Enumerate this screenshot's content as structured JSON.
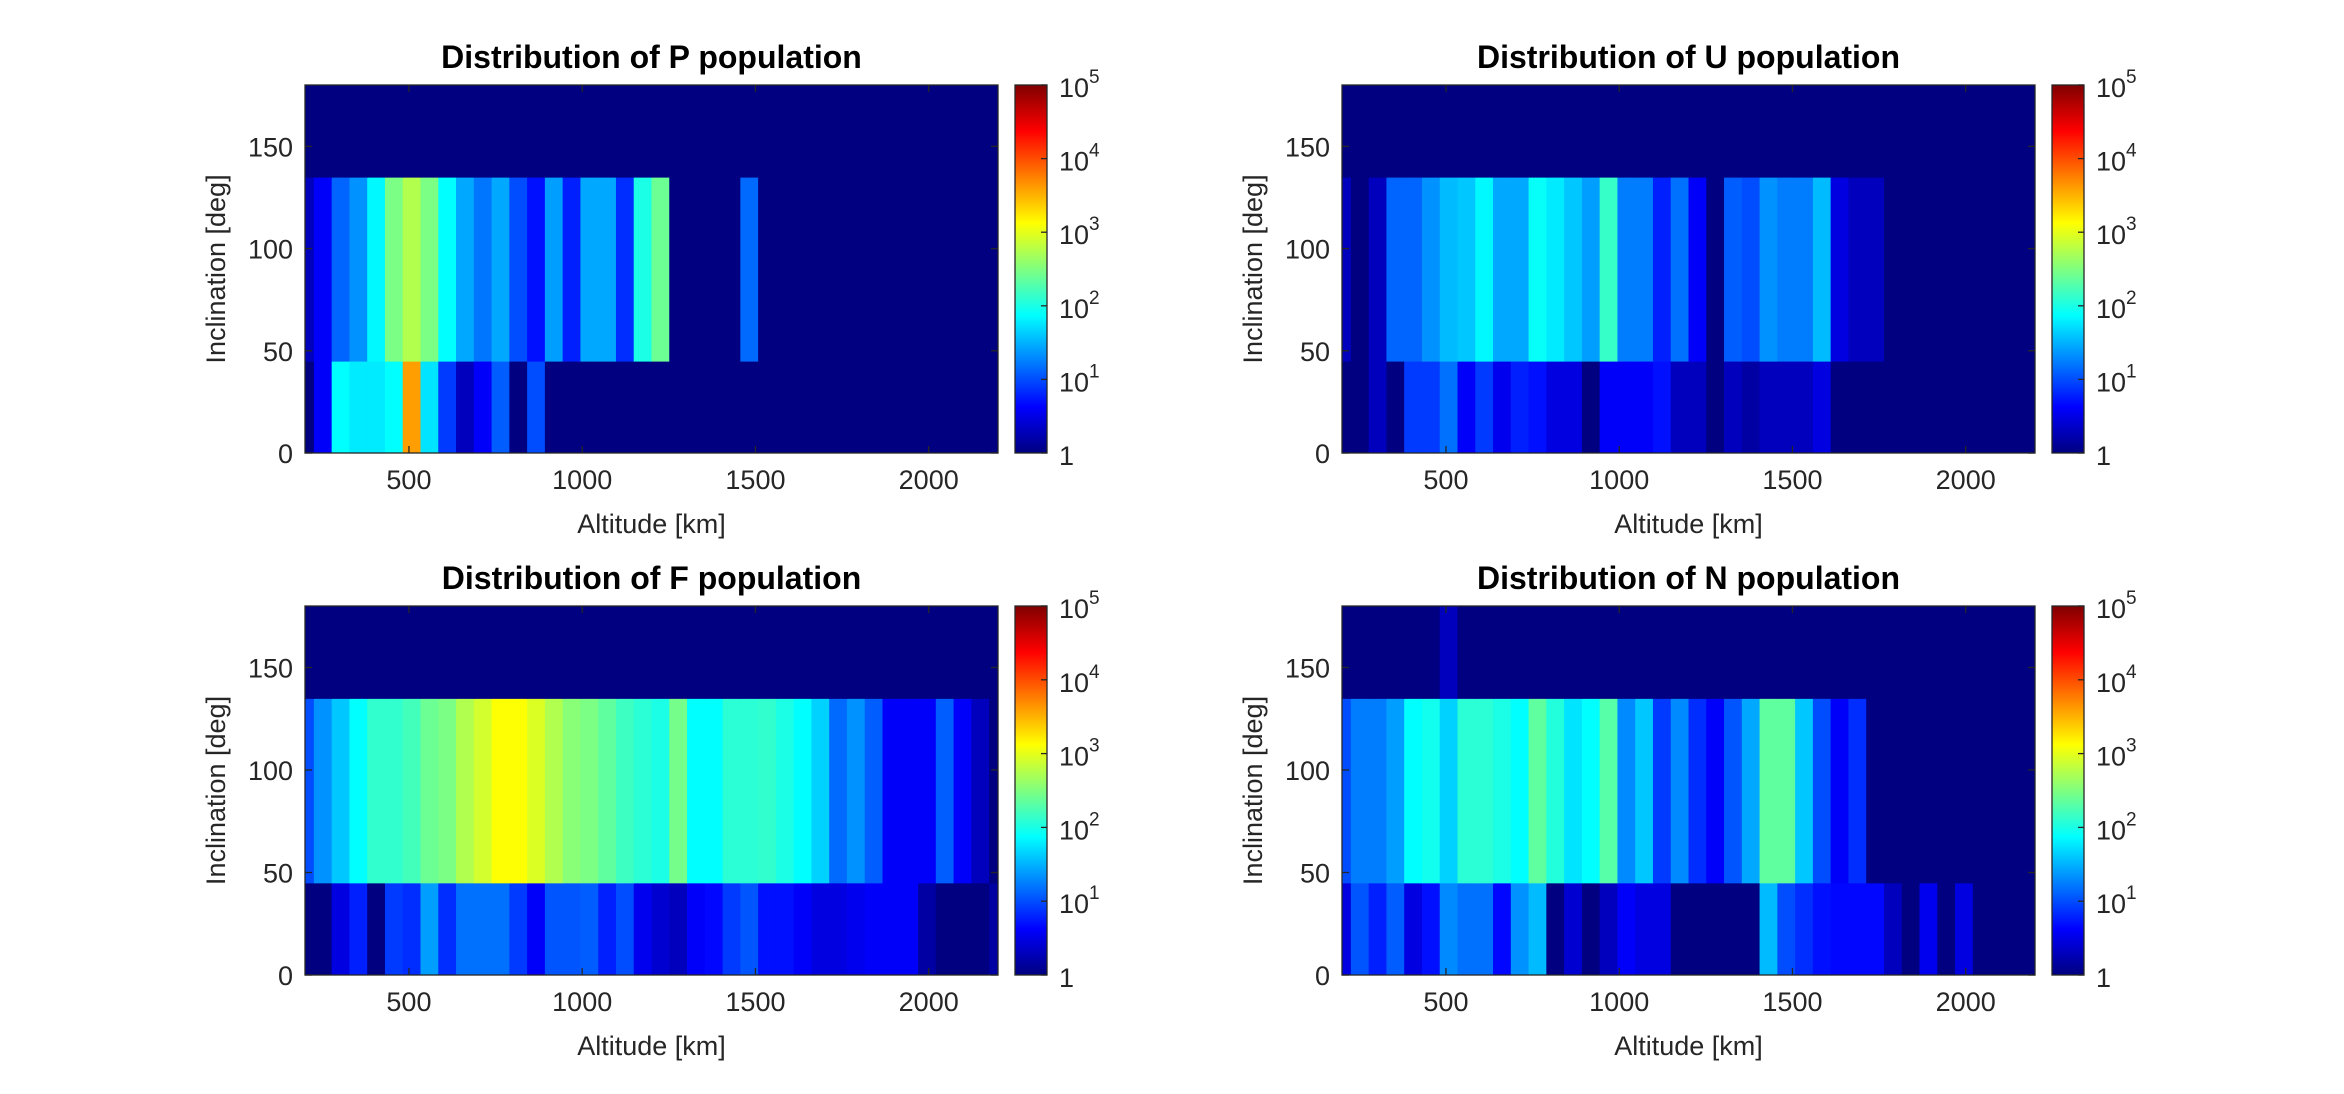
{
  "chart_data": [
    {
      "type": "heatmap",
      "title": "Distribution of P population",
      "xlabel": "Altitude [km]",
      "ylabel": "Inclination [deg]",
      "x_range": [
        200,
        2200
      ],
      "x_count": 40,
      "y": [
        0,
        90,
        180
      ],
      "xlim": [
        200,
        2200
      ],
      "ylim": [
        0,
        180
      ],
      "xticks": [
        500,
        1000,
        1500,
        2000
      ],
      "yticks": [
        0,
        50,
        100,
        150
      ],
      "colormap": "jet",
      "color_scale": "log",
      "clim": [
        1,
        100000
      ],
      "colorbar_ticks": [
        "1",
        "10^1",
        "10^2",
        "10^3",
        "10^4",
        "10^5"
      ],
      "values": [
        [
          0,
          4,
          75,
          60,
          60,
          75,
          4000,
          55,
          8,
          2,
          4,
          12,
          0,
          10,
          0,
          0,
          0,
          0,
          0,
          0,
          0,
          0,
          0,
          0,
          0,
          0,
          0,
          0,
          0,
          0,
          0,
          0,
          0,
          0,
          0,
          0,
          0,
          0,
          0,
          0
        ],
        [
          2,
          4,
          13,
          22,
          70,
          300,
          560,
          300,
          75,
          28,
          16,
          28,
          10,
          5,
          25,
          6,
          28,
          28,
          7,
          100,
          250,
          0,
          0,
          0,
          0,
          14,
          0,
          0,
          0,
          0,
          0,
          0,
          0,
          0,
          0,
          0,
          0,
          0,
          0,
          0
        ],
        [
          0,
          0,
          0,
          0,
          0,
          0,
          0,
          0,
          0,
          0,
          0,
          0,
          0,
          0,
          0,
          0,
          0,
          0,
          0,
          0,
          0,
          0,
          0,
          0,
          0,
          0,
          0,
          0,
          0,
          0,
          0,
          0,
          0,
          0,
          0,
          0,
          0,
          0,
          0,
          0
        ]
      ]
    },
    {
      "type": "heatmap",
      "title": "Distribution of U population",
      "xlabel": "Altitude [km]",
      "ylabel": "Inclination [deg]",
      "x_range": [
        200,
        2200
      ],
      "x_count": 40,
      "y": [
        0,
        90,
        180
      ],
      "xlim": [
        200,
        2200
      ],
      "ylim": [
        0,
        180
      ],
      "xticks": [
        500,
        1000,
        1500,
        2000
      ],
      "yticks": [
        0,
        50,
        100,
        150
      ],
      "colormap": "jet",
      "color_scale": "log",
      "clim": [
        1,
        100000
      ],
      "colorbar_ticks": [
        "1",
        "10^1",
        "10^2",
        "10^3",
        "10^4",
        "10^5"
      ],
      "values": [
        [
          0,
          0,
          2,
          0,
          8,
          8,
          15,
          4,
          8,
          3.5,
          6,
          5,
          3,
          3,
          0,
          4,
          4,
          4,
          5,
          2,
          2,
          0,
          2,
          1.5,
          2,
          2,
          2,
          3,
          0,
          0,
          0,
          0,
          0,
          0,
          0,
          0,
          0,
          0,
          0,
          0
        ],
        [
          2,
          0,
          2,
          13,
          13,
          22,
          35,
          40,
          70,
          28,
          28,
          80,
          60,
          40,
          25,
          140,
          17,
          17,
          6,
          15,
          4,
          0,
          12,
          10,
          22,
          17,
          17,
          35,
          3,
          2,
          2,
          0,
          0,
          0,
          0,
          0,
          0,
          0,
          0,
          0
        ],
        [
          0,
          0,
          0,
          0,
          0,
          0,
          0,
          0,
          0,
          0,
          0,
          0,
          0,
          0,
          0,
          0,
          0,
          0,
          0,
          0,
          0,
          0,
          0,
          0,
          0,
          0,
          0,
          0,
          0,
          0,
          0,
          0,
          0,
          0,
          0,
          0,
          0,
          0,
          0,
          0
        ]
      ]
    },
    {
      "type": "heatmap",
      "title": "Distribution of F population",
      "xlabel": "Altitude [km]",
      "ylabel": "Inclination [deg]",
      "x_range": [
        200,
        2200
      ],
      "x_count": 40,
      "y": [
        0,
        90,
        180
      ],
      "xlim": [
        200,
        2200
      ],
      "ylim": [
        0,
        180
      ],
      "xticks": [
        500,
        1000,
        1500,
        2000
      ],
      "yticks": [
        0,
        50,
        100,
        150
      ],
      "colormap": "jet",
      "color_scale": "log",
      "clim": [
        1,
        100000
      ],
      "colorbar_ticks": [
        "1",
        "10^1",
        "10^2",
        "10^3",
        "10^4",
        "10^5"
      ],
      "values": [
        [
          0,
          0,
          3,
          6,
          0,
          8,
          7,
          25,
          7,
          15,
          15,
          15,
          8,
          4,
          11,
          11,
          12,
          6,
          10,
          3.5,
          2.5,
          2,
          4,
          4.5,
          8,
          11,
          5,
          5,
          4,
          3,
          3,
          3.5,
          4,
          4,
          4,
          1.5,
          0,
          0,
          0,
          1.5
        ],
        [
          10,
          22,
          40,
          75,
          130,
          130,
          160,
          250,
          300,
          550,
          800,
          1300,
          1300,
          900,
          550,
          350,
          300,
          220,
          150,
          120,
          100,
          280,
          75,
          75,
          120,
          120,
          130,
          100,
          75,
          45,
          14,
          22,
          12,
          4,
          4,
          4,
          12,
          4,
          2,
          0
        ],
        [
          0,
          0,
          0,
          0,
          0,
          0,
          0,
          0,
          0,
          0,
          0,
          0,
          0,
          0,
          0,
          0,
          0,
          0,
          0,
          0,
          0,
          0,
          0,
          0,
          0,
          0,
          0,
          0,
          0,
          0,
          0,
          0,
          0,
          0,
          0,
          0,
          0,
          0,
          0,
          0
        ]
      ]
    },
    {
      "type": "heatmap",
      "title": "Distribution of N population",
      "xlabel": "Altitude [km]",
      "ylabel": "Inclination [deg]",
      "x_range": [
        200,
        2200
      ],
      "x_count": 40,
      "y": [
        0,
        90,
        180
      ],
      "xlim": [
        200,
        2200
      ],
      "ylim": [
        0,
        180
      ],
      "xticks": [
        500,
        1000,
        1500,
        2000
      ],
      "yticks": [
        0,
        50,
        100,
        150
      ],
      "colormap": "jet",
      "color_scale": "log",
      "clim": [
        1,
        100000
      ],
      "colorbar_ticks": [
        "1",
        "10^1",
        "10^2",
        "10^3",
        "10^4",
        "10^5"
      ],
      "values": [
        [
          3,
          11,
          6,
          12,
          3,
          5,
          20,
          15,
          15,
          4.5,
          22,
          35,
          0,
          2.5,
          0,
          2,
          4,
          3,
          3,
          0,
          0,
          0,
          0,
          0,
          35,
          10,
          7,
          5,
          4.5,
          4.5,
          4.5,
          2,
          0,
          3.5,
          0,
          3,
          0,
          0,
          0,
          0
        ],
        [
          10,
          17,
          17,
          25,
          75,
          90,
          45,
          120,
          120,
          100,
          75,
          220,
          110,
          55,
          75,
          200,
          20,
          40,
          8,
          20,
          7,
          4,
          11,
          28,
          220,
          220,
          40,
          10,
          4,
          7,
          0,
          0,
          0,
          0,
          0,
          0,
          0,
          0,
          0,
          0
        ],
        [
          0,
          0,
          0,
          0,
          0,
          0,
          2,
          0,
          0,
          0,
          0,
          0,
          0,
          0,
          0,
          0,
          0,
          0,
          0,
          0,
          0,
          0,
          0,
          0,
          0,
          0,
          0,
          0,
          0,
          0,
          0,
          0,
          0,
          0,
          0,
          0,
          0,
          0,
          0,
          0
        ]
      ]
    }
  ]
}
